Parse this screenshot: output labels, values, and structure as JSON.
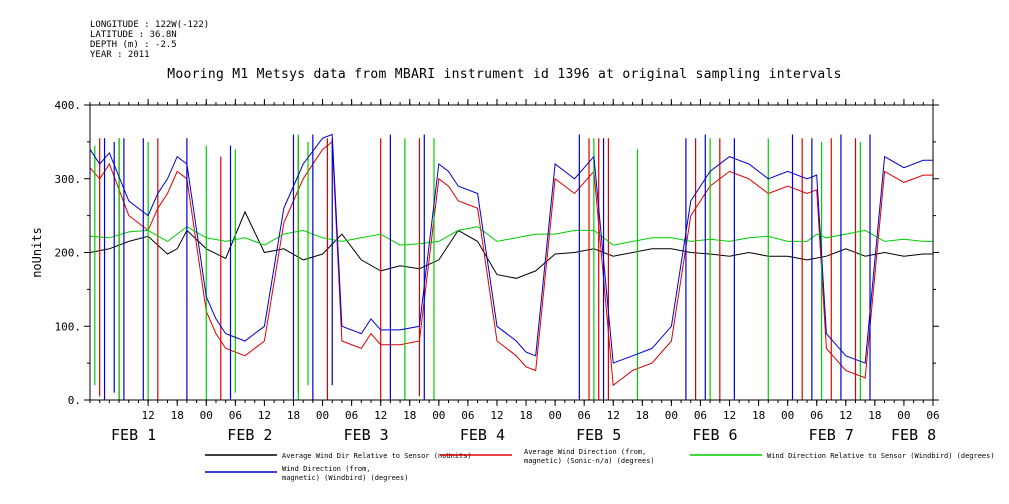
{
  "header": {
    "meta_lines": [
      "LONGITUDE : 122W(-122)",
      "LATITUDE : 36.8N",
      "DEPTH (m) : -2.5",
      "YEAR : 2011"
    ],
    "title": "Mooring M1 Metsys data from MBARI instrument id 1396 at original sampling intervals"
  },
  "chart_data": {
    "type": "line",
    "title": "Mooring M1 Metsys data from MBARI instrument id 1396 at original sampling intervals",
    "ylabel": "noUnits",
    "ylim": [
      0,
      400
    ],
    "yticks": [
      {
        "value": 0,
        "label": "0."
      },
      {
        "value": 100,
        "label": "100."
      },
      {
        "value": 200,
        "label": "200."
      },
      {
        "value": 300,
        "label": "300."
      },
      {
        "value": 400,
        "label": "400."
      }
    ],
    "xlim_hours": [
      0,
      174
    ],
    "hour_ticks": [
      {
        "h": 12,
        "label": "12"
      },
      {
        "h": 18,
        "label": "18"
      },
      {
        "h": 24,
        "label": "00"
      },
      {
        "h": 30,
        "label": "06"
      },
      {
        "h": 36,
        "label": "12"
      },
      {
        "h": 42,
        "label": "18"
      },
      {
        "h": 48,
        "label": "00"
      },
      {
        "h": 54,
        "label": "06"
      },
      {
        "h": 60,
        "label": "12"
      },
      {
        "h": 66,
        "label": "18"
      },
      {
        "h": 72,
        "label": "00"
      },
      {
        "h": 78,
        "label": "06"
      },
      {
        "h": 84,
        "label": "12"
      },
      {
        "h": 90,
        "label": "18"
      },
      {
        "h": 96,
        "label": "00"
      },
      {
        "h": 102,
        "label": "06"
      },
      {
        "h": 108,
        "label": "12"
      },
      {
        "h": 114,
        "label": "18"
      },
      {
        "h": 120,
        "label": "00"
      },
      {
        "h": 126,
        "label": "06"
      },
      {
        "h": 132,
        "label": "12"
      },
      {
        "h": 138,
        "label": "18"
      },
      {
        "h": 144,
        "label": "00"
      },
      {
        "h": 150,
        "label": "06"
      },
      {
        "h": 156,
        "label": "12"
      },
      {
        "h": 162,
        "label": "18"
      },
      {
        "h": 168,
        "label": "00"
      },
      {
        "h": 174,
        "label": "06"
      }
    ],
    "day_labels": [
      {
        "h": 9,
        "label": "FEB  1"
      },
      {
        "h": 33,
        "label": "FEB  2"
      },
      {
        "h": 57,
        "label": "FEB  3"
      },
      {
        "h": 81,
        "label": "FEB  4"
      },
      {
        "h": 105,
        "label": "FEB  5"
      },
      {
        "h": 129,
        "label": "FEB  6"
      },
      {
        "h": 153,
        "label": "FEB  7"
      },
      {
        "h": 170,
        "label": "FEB  8"
      }
    ],
    "grid": false,
    "series": [
      {
        "name": "Average Wind Dir Relative to Sensor (noUnits)",
        "color": "#000000",
        "legend_lines": [
          "Average Wind Dir Relative to Sensor (noUnits)"
        ],
        "x": [
          0,
          4,
          8,
          12,
          16,
          18,
          20,
          24,
          28,
          32,
          36,
          40,
          44,
          48,
          52,
          56,
          60,
          64,
          68,
          72,
          76,
          80,
          84,
          88,
          92,
          96,
          100,
          104,
          108,
          112,
          116,
          120,
          124,
          128,
          132,
          136,
          140,
          144,
          148,
          152,
          156,
          160,
          164,
          168,
          172,
          174
        ],
        "y": [
          200,
          205,
          215,
          222,
          198,
          205,
          230,
          205,
          192,
          255,
          200,
          205,
          190,
          198,
          225,
          190,
          175,
          182,
          178,
          190,
          230,
          215,
          170,
          165,
          175,
          198,
          200,
          205,
          195,
          200,
          205,
          205,
          200,
          198,
          195,
          200,
          195,
          195,
          190,
          195,
          205,
          195,
          200,
          195,
          198,
          198
        ],
        "spikes": []
      },
      {
        "name": "Average Wind Direction (from, magnetic) (Sonic-n/a) (degrees)",
        "color": "#dd0000",
        "legend_lines": [
          "Average Wind Direction (from,",
          "magnetic) (Sonic-n/a) (degrees)"
        ],
        "x": [
          0,
          2,
          4,
          8,
          12,
          14,
          16,
          18,
          20,
          24,
          26,
          28,
          32,
          36,
          40,
          44,
          48,
          50,
          52,
          56,
          58,
          60,
          64,
          68,
          72,
          74,
          76,
          80,
          84,
          88,
          90,
          92,
          96,
          98,
          100,
          104,
          108,
          112,
          116,
          120,
          124,
          128,
          132,
          134,
          136,
          140,
          144,
          148,
          150,
          152,
          156,
          160,
          164,
          168,
          172,
          174
        ],
        "y": [
          315,
          300,
          320,
          250,
          230,
          260,
          280,
          310,
          300,
          120,
          90,
          70,
          60,
          80,
          240,
          300,
          340,
          350,
          80,
          70,
          90,
          75,
          75,
          80,
          300,
          290,
          270,
          260,
          80,
          60,
          45,
          40,
          300,
          290,
          280,
          310,
          20,
          40,
          50,
          80,
          250,
          290,
          310,
          305,
          300,
          280,
          290,
          280,
          285,
          70,
          40,
          30,
          310,
          295,
          305,
          305
        ],
        "spikes": [
          [
            2,
            5,
            355
          ],
          [
            6,
            0,
            355
          ],
          [
            14,
            0,
            355
          ],
          [
            27,
            0,
            330
          ],
          [
            43,
            10,
            355
          ],
          [
            49,
            0,
            355
          ],
          [
            60,
            0,
            355
          ],
          [
            68,
            5,
            355
          ],
          [
            103,
            0,
            355
          ],
          [
            105,
            0,
            355
          ],
          [
            107,
            0,
            355
          ],
          [
            125,
            0,
            355
          ],
          [
            130,
            0,
            355
          ],
          [
            147,
            0,
            355
          ],
          [
            153,
            0,
            355
          ],
          [
            158,
            0,
            355
          ]
        ]
      },
      {
        "name": "Wind Direction Relative to Sensor (Windbird) (degrees)",
        "color": "#00cc00",
        "legend_lines": [
          "Wind Direction Relative to Sensor (Windbird) (degrees)"
        ],
        "x": [
          0,
          4,
          8,
          12,
          16,
          18,
          20,
          24,
          28,
          32,
          36,
          40,
          44,
          48,
          52,
          56,
          60,
          64,
          68,
          72,
          76,
          80,
          84,
          88,
          92,
          96,
          100,
          104,
          108,
          112,
          116,
          120,
          124,
          128,
          132,
          136,
          140,
          144,
          148,
          150,
          152,
          156,
          160,
          164,
          168,
          172,
          174
        ],
        "y": [
          222,
          220,
          228,
          230,
          215,
          225,
          235,
          220,
          215,
          220,
          210,
          225,
          230,
          220,
          215,
          220,
          225,
          210,
          212,
          215,
          230,
          235,
          215,
          220,
          225,
          225,
          230,
          230,
          210,
          215,
          220,
          220,
          215,
          218,
          215,
          220,
          222,
          215,
          215,
          225,
          220,
          225,
          230,
          215,
          218,
          215,
          215
        ],
        "spikes": [
          [
            1,
            20,
            345
          ],
          [
            6,
            0,
            355
          ],
          [
            12,
            0,
            350
          ],
          [
            24,
            0,
            345
          ],
          [
            30,
            10,
            340
          ],
          [
            43,
            0,
            360
          ],
          [
            45,
            20,
            350
          ],
          [
            65,
            0,
            355
          ],
          [
            71,
            0,
            355
          ],
          [
            104,
            0,
            355
          ],
          [
            113,
            0,
            340
          ],
          [
            128,
            0,
            355
          ],
          [
            140,
            0,
            355
          ],
          [
            151,
            0,
            350
          ],
          [
            159,
            0,
            350
          ]
        ]
      },
      {
        "name": "Wind Direction (from, magnetic) (Windbird) (degrees)",
        "color": "#0000cc",
        "legend_lines": [
          "Wind Direction (from,",
          "magnetic) (Windbird) (degrees)"
        ],
        "x": [
          0,
          2,
          4,
          8,
          12,
          14,
          16,
          18,
          20,
          24,
          26,
          28,
          32,
          36,
          40,
          44,
          48,
          50,
          52,
          56,
          58,
          60,
          64,
          68,
          72,
          74,
          76,
          80,
          84,
          88,
          90,
          92,
          96,
          98,
          100,
          104,
          108,
          112,
          116,
          120,
          124,
          128,
          132,
          134,
          136,
          140,
          144,
          148,
          150,
          152,
          156,
          160,
          164,
          168,
          172,
          174
        ],
        "y": [
          340,
          320,
          335,
          270,
          250,
          280,
          300,
          330,
          320,
          140,
          110,
          90,
          80,
          100,
          260,
          320,
          355,
          360,
          100,
          90,
          110,
          95,
          95,
          100,
          320,
          310,
          290,
          280,
          100,
          80,
          65,
          60,
          320,
          310,
          300,
          330,
          50,
          60,
          70,
          100,
          270,
          310,
          330,
          325,
          320,
          300,
          310,
          300,
          305,
          90,
          60,
          50,
          330,
          315,
          325,
          325
        ],
        "spikes": [
          [
            3,
            0,
            355
          ],
          [
            5,
            10,
            350
          ],
          [
            7,
            0,
            355
          ],
          [
            11,
            0,
            355
          ],
          [
            20,
            0,
            355
          ],
          [
            29,
            0,
            345
          ],
          [
            42,
            0,
            360
          ],
          [
            46,
            0,
            360
          ],
          [
            50,
            20,
            355
          ],
          [
            62,
            0,
            360
          ],
          [
            69,
            0,
            360
          ],
          [
            101,
            0,
            360
          ],
          [
            106,
            0,
            355
          ],
          [
            123,
            0,
            355
          ],
          [
            127,
            0,
            360
          ],
          [
            133,
            0,
            355
          ],
          [
            145,
            0,
            360
          ],
          [
            149,
            0,
            355
          ],
          [
            155,
            0,
            360
          ],
          [
            161,
            0,
            360
          ]
        ]
      }
    ]
  }
}
